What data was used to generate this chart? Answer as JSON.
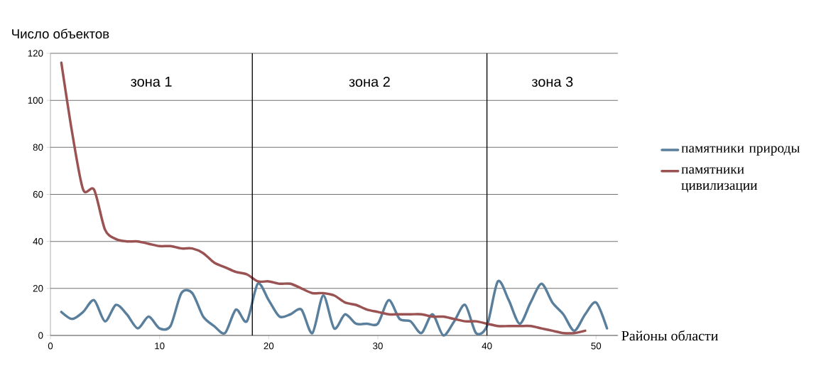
{
  "chart_data": {
    "type": "line",
    "ylabel": "Число объектов",
    "xlabel": "Районы области",
    "x": [
      1,
      2,
      3,
      4,
      5,
      6,
      7,
      8,
      9,
      10,
      11,
      12,
      13,
      14,
      15,
      16,
      17,
      18,
      19,
      20,
      21,
      22,
      23,
      24,
      25,
      26,
      27,
      28,
      29,
      30,
      31,
      32,
      33,
      34,
      35,
      36,
      37,
      38,
      39,
      40,
      41,
      42,
      43,
      44,
      45,
      46,
      47,
      48,
      49,
      50,
      51
    ],
    "series": [
      {
        "name": "памятники природы",
        "color": "#5a7f9c",
        "values": [
          10,
          7,
          10,
          15,
          6,
          13,
          9,
          3,
          8,
          3,
          4,
          18,
          18,
          8,
          4,
          1,
          11,
          6,
          22,
          15,
          8,
          9,
          11,
          1,
          17,
          3,
          9,
          5,
          5,
          5,
          15,
          7,
          6,
          1,
          9,
          0,
          6,
          13,
          1,
          4,
          23,
          15,
          5,
          14,
          22,
          14,
          9,
          2,
          9,
          14,
          3
        ]
      },
      {
        "name": "памятники цивилизации",
        "color": "#9a5252",
        "x": [
          1,
          2,
          3,
          4,
          5,
          6,
          7,
          8,
          9,
          10,
          11,
          12,
          13,
          14,
          15,
          16,
          17,
          18,
          19,
          20,
          21,
          22,
          23,
          24,
          25,
          26,
          27,
          28,
          29,
          30,
          31,
          32,
          33,
          34,
          35,
          36,
          37,
          38,
          39,
          40,
          41,
          42,
          43,
          44,
          45,
          46,
          47,
          48,
          49
        ],
        "values": [
          116,
          86,
          62,
          62,
          45,
          41,
          40,
          40,
          39,
          38,
          38,
          37,
          37,
          35,
          31,
          29,
          27,
          26,
          23,
          23,
          22,
          22,
          20,
          18,
          18,
          17,
          14,
          13,
          11,
          10,
          9,
          9,
          9,
          9,
          8,
          8,
          7,
          6,
          6,
          5,
          4,
          4,
          4,
          4,
          3,
          2,
          1,
          1,
          2
        ]
      }
    ],
    "xlim": [
      0,
      52
    ],
    "xticks": [
      0,
      10,
      20,
      30,
      40,
      50
    ],
    "ylim": [
      0,
      120
    ],
    "yticks": [
      0,
      20,
      40,
      60,
      80,
      100,
      120
    ],
    "grid": "y",
    "legend": "right",
    "ref_lines": [
      {
        "axis": "x",
        "value": 18.5,
        "color": "#000000"
      },
      {
        "axis": "x",
        "value": 40,
        "color": "#000000"
      }
    ],
    "annotations": [
      "зона 1",
      "зона 2",
      "зона 3"
    ]
  }
}
